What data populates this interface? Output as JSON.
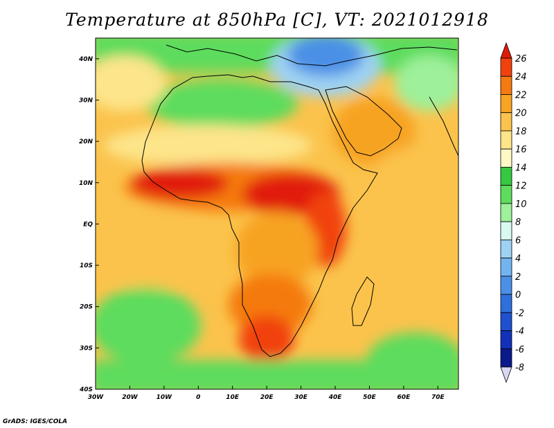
{
  "title": "Temperature at 850hPa [C], VT: 2021012918",
  "credit": "GrADS: IGES/COLA",
  "map": {
    "lon_range": [
      -30,
      76
    ],
    "lat_range": [
      -40,
      45
    ],
    "lon_ticks": [
      "30W",
      "20W",
      "10W",
      "0",
      "10E",
      "20E",
      "30E",
      "40E",
      "50E",
      "60E",
      "70E"
    ],
    "lat_ticks": [
      "40N",
      "30N",
      "20N",
      "10N",
      "EQ",
      "10S",
      "20S",
      "30S",
      "40S"
    ],
    "field": "temperature at 850hPa",
    "unit": "C"
  },
  "colorbar": {
    "labels": [
      "26",
      "24",
      "22",
      "20",
      "18",
      "16",
      "14",
      "12",
      "10",
      "8",
      "6",
      "4",
      "2",
      "0",
      "-2",
      "-4",
      "-6",
      "-8"
    ],
    "colors": [
      "#e11b0a",
      "#f1420e",
      "#f57a11",
      "#f7a324",
      "#fbc34c",
      "#fde58a",
      "#fdf8c4",
      "#34c940",
      "#5ddc5d",
      "#9ef09a",
      "#d8f9ef",
      "#9ed2f3",
      "#72b4ef",
      "#4b90e6",
      "#2f6fdc",
      "#1f50d0",
      "#1231b8",
      "#0a1a8a",
      "#d8d8f4"
    ]
  }
}
